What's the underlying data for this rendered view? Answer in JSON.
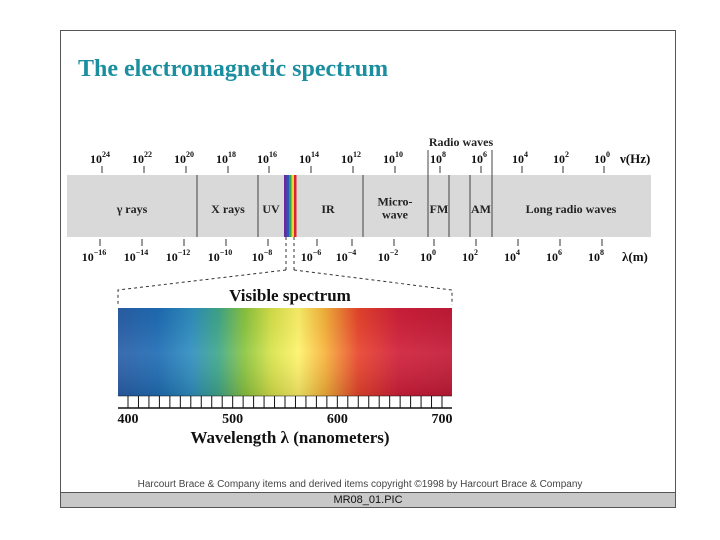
{
  "title": "The electromagnetic spectrum",
  "frequency_ticks": [
    {
      "base": "10",
      "exp": "24"
    },
    {
      "base": "10",
      "exp": "22"
    },
    {
      "base": "10",
      "exp": "20"
    },
    {
      "base": "10",
      "exp": "18"
    },
    {
      "base": "10",
      "exp": "16"
    },
    {
      "base": "10",
      "exp": "14"
    },
    {
      "base": "10",
      "exp": "12"
    },
    {
      "base": "10",
      "exp": "10"
    },
    {
      "base": "10",
      "exp": "8"
    },
    {
      "base": "10",
      "exp": "6"
    },
    {
      "base": "10",
      "exp": "4"
    },
    {
      "base": "10",
      "exp": "2"
    },
    {
      "base": "10",
      "exp": "0"
    }
  ],
  "frequency_unit": "ν(Hz)",
  "wavelength_ticks": [
    {
      "base": "10",
      "exp": "−16"
    },
    {
      "base": "10",
      "exp": "−14"
    },
    {
      "base": "10",
      "exp": "−12"
    },
    {
      "base": "10",
      "exp": "−10"
    },
    {
      "base": "10",
      "exp": "−8"
    },
    {
      "base": "10",
      "exp": "−6"
    },
    {
      "base": "10",
      "exp": "−4"
    },
    {
      "base": "10",
      "exp": "−2"
    },
    {
      "base": "10",
      "exp": "0"
    },
    {
      "base": "10",
      "exp": "2"
    },
    {
      "base": "10",
      "exp": "4"
    },
    {
      "base": "10",
      "exp": "6"
    },
    {
      "base": "10",
      "exp": "8"
    }
  ],
  "wavelength_unit": "λ(m)",
  "radio_waves_label": "Radio waves",
  "bands": [
    {
      "lines": [
        "γ rays"
      ]
    },
    {
      "lines": [
        "X rays"
      ]
    },
    {
      "lines": [
        "UV"
      ]
    },
    {
      "lines": [
        "IR"
      ]
    },
    {
      "lines": [
        "Micro-",
        "wave"
      ]
    },
    {
      "lines": [
        "FM"
      ]
    },
    {
      "lines": [
        "AM"
      ]
    },
    {
      "lines": [
        "Long radio waves"
      ]
    }
  ],
  "visible_title": "Visible spectrum",
  "nm_ticks": [
    "400",
    "500",
    "600",
    "700"
  ],
  "nm_axis_label": "Wavelength λ (nanometers)",
  "copyright": "Harcourt Brace & Company items and derived items copyright ©1998 by Harcourt Brace & Company",
  "footer": "MR08_01.PIC"
}
